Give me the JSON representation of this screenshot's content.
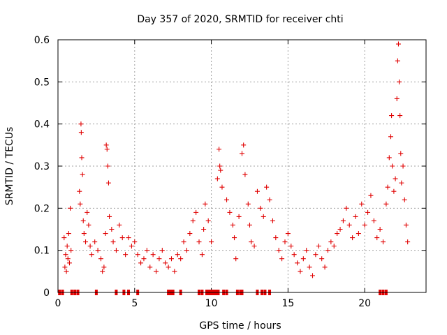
{
  "chart_data": {
    "type": "scatter",
    "title": "Day 357 of 2020, SRMTID for receiver chti",
    "xlabel": "GPS time / hours",
    "ylabel": "SRMTID / TECUs",
    "xlim": [
      0,
      24
    ],
    "ylim": [
      0,
      0.6
    ],
    "xticks": [
      0,
      5,
      10,
      15,
      20
    ],
    "xtick_labels": [
      "0",
      "5",
      "10",
      "15",
      "20"
    ],
    "yticks": [
      0,
      0.1,
      0.2,
      0.3,
      0.4,
      0.5,
      0.6
    ],
    "ytick_labels": [
      "0",
      "0.1",
      "0.2",
      "0.3",
      "0.4",
      "0.5",
      "0.6"
    ],
    "grid": true,
    "marker": "+",
    "color": "#e00000",
    "series": [
      {
        "name": "SRMTID",
        "points": [
          [
            0.4,
            0.13
          ],
          [
            0.45,
            0.06
          ],
          [
            0.5,
            0.09
          ],
          [
            0.55,
            0.05
          ],
          [
            0.6,
            0.11
          ],
          [
            0.65,
            0.08
          ],
          [
            0.7,
            0.14
          ],
          [
            0.75,
            0.07
          ],
          [
            0.8,
            0.2
          ],
          [
            0.85,
            0.1
          ],
          [
            1.4,
            0.24
          ],
          [
            1.45,
            0.21
          ],
          [
            1.5,
            0.4
          ],
          [
            1.52,
            0.38
          ],
          [
            1.55,
            0.32
          ],
          [
            1.6,
            0.28
          ],
          [
            1.65,
            0.17
          ],
          [
            1.7,
            0.14
          ],
          [
            1.8,
            0.12
          ],
          [
            1.9,
            0.19
          ],
          [
            2.0,
            0.16
          ],
          [
            2.1,
            0.11
          ],
          [
            2.2,
            0.09
          ],
          [
            2.4,
            0.12
          ],
          [
            2.6,
            0.1
          ],
          [
            2.8,
            0.08
          ],
          [
            2.9,
            0.05
          ],
          [
            3.0,
            0.06
          ],
          [
            3.1,
            0.14
          ],
          [
            3.15,
            0.35
          ],
          [
            3.2,
            0.34
          ],
          [
            3.25,
            0.3
          ],
          [
            3.3,
            0.26
          ],
          [
            3.35,
            0.18
          ],
          [
            3.5,
            0.15
          ],
          [
            3.6,
            0.12
          ],
          [
            3.8,
            0.1
          ],
          [
            4.0,
            0.16
          ],
          [
            4.2,
            0.13
          ],
          [
            4.4,
            0.09
          ],
          [
            4.6,
            0.13
          ],
          [
            4.8,
            0.11
          ],
          [
            5.0,
            0.12
          ],
          [
            5.2,
            0.09
          ],
          [
            5.4,
            0.07
          ],
          [
            5.6,
            0.08
          ],
          [
            5.8,
            0.1
          ],
          [
            6.0,
            0.06
          ],
          [
            6.2,
            0.09
          ],
          [
            6.4,
            0.05
          ],
          [
            6.6,
            0.08
          ],
          [
            6.8,
            0.1
          ],
          [
            7.0,
            0.07
          ],
          [
            7.2,
            0.06
          ],
          [
            7.4,
            0.08
          ],
          [
            7.6,
            0.05
          ],
          [
            7.8,
            0.09
          ],
          [
            8.0,
            0.08
          ],
          [
            8.2,
            0.12
          ],
          [
            8.4,
            0.1
          ],
          [
            8.6,
            0.14
          ],
          [
            8.8,
            0.17
          ],
          [
            9.0,
            0.19
          ],
          [
            9.2,
            0.12
          ],
          [
            9.4,
            0.09
          ],
          [
            9.5,
            0.15
          ],
          [
            9.6,
            0.21
          ],
          [
            9.8,
            0.17
          ],
          [
            10.0,
            0.12
          ],
          [
            10.4,
            0.27
          ],
          [
            10.5,
            0.34
          ],
          [
            10.55,
            0.3
          ],
          [
            10.6,
            0.29
          ],
          [
            10.7,
            0.25
          ],
          [
            11.0,
            0.22
          ],
          [
            11.2,
            0.19
          ],
          [
            11.4,
            0.16
          ],
          [
            11.5,
            0.13
          ],
          [
            11.6,
            0.08
          ],
          [
            11.8,
            0.18
          ],
          [
            12.0,
            0.33
          ],
          [
            12.1,
            0.35
          ],
          [
            12.2,
            0.28
          ],
          [
            12.4,
            0.21
          ],
          [
            12.5,
            0.16
          ],
          [
            12.6,
            0.12
          ],
          [
            12.8,
            0.11
          ],
          [
            13.0,
            0.24
          ],
          [
            13.2,
            0.2
          ],
          [
            13.4,
            0.18
          ],
          [
            13.6,
            0.25
          ],
          [
            13.8,
            0.22
          ],
          [
            14.0,
            0.17
          ],
          [
            14.2,
            0.13
          ],
          [
            14.4,
            0.1
          ],
          [
            14.6,
            0.08
          ],
          [
            14.8,
            0.12
          ],
          [
            15.0,
            0.14
          ],
          [
            15.2,
            0.11
          ],
          [
            15.4,
            0.09
          ],
          [
            15.6,
            0.07
          ],
          [
            15.8,
            0.05
          ],
          [
            16.0,
            0.08
          ],
          [
            16.2,
            0.1
          ],
          [
            16.4,
            0.06
          ],
          [
            16.6,
            0.04
          ],
          [
            16.8,
            0.09
          ],
          [
            17.0,
            0.11
          ],
          [
            17.2,
            0.08
          ],
          [
            17.4,
            0.06
          ],
          [
            17.6,
            0.1
          ],
          [
            17.8,
            0.12
          ],
          [
            18.0,
            0.11
          ],
          [
            18.2,
            0.14
          ],
          [
            18.4,
            0.15
          ],
          [
            18.6,
            0.17
          ],
          [
            18.8,
            0.2
          ],
          [
            19.0,
            0.16
          ],
          [
            19.2,
            0.13
          ],
          [
            19.4,
            0.18
          ],
          [
            19.6,
            0.14
          ],
          [
            19.8,
            0.21
          ],
          [
            20.0,
            0.16
          ],
          [
            20.2,
            0.19
          ],
          [
            20.4,
            0.23
          ],
          [
            20.6,
            0.17
          ],
          [
            20.8,
            0.13
          ],
          [
            21.0,
            0.15
          ],
          [
            21.2,
            0.12
          ],
          [
            21.4,
            0.21
          ],
          [
            21.5,
            0.25
          ],
          [
            21.6,
            0.32
          ],
          [
            21.7,
            0.37
          ],
          [
            21.75,
            0.42
          ],
          [
            21.8,
            0.3
          ],
          [
            21.9,
            0.24
          ],
          [
            22.0,
            0.27
          ],
          [
            22.1,
            0.46
          ],
          [
            22.15,
            0.55
          ],
          [
            22.2,
            0.59
          ],
          [
            22.25,
            0.5
          ],
          [
            22.3,
            0.42
          ],
          [
            22.35,
            0.33
          ],
          [
            22.4,
            0.26
          ],
          [
            22.5,
            0.3
          ],
          [
            22.6,
            0.22
          ],
          [
            22.7,
            0.16
          ],
          [
            22.8,
            0.12
          ],
          [
            0.1,
            0
          ],
          [
            0.3,
            0
          ],
          [
            0.9,
            0
          ],
          [
            1.1,
            0
          ],
          [
            1.3,
            0
          ],
          [
            2.5,
            0
          ],
          [
            3.8,
            0
          ],
          [
            4.3,
            0
          ],
          [
            4.6,
            0
          ],
          [
            5.2,
            0
          ],
          [
            7.2,
            0
          ],
          [
            7.35,
            0
          ],
          [
            7.5,
            0
          ],
          [
            8.0,
            0
          ],
          [
            9.2,
            0
          ],
          [
            9.4,
            0
          ],
          [
            9.7,
            0
          ],
          [
            9.85,
            0
          ],
          [
            10.0,
            0
          ],
          [
            10.15,
            0
          ],
          [
            10.3,
            0
          ],
          [
            10.45,
            0
          ],
          [
            10.8,
            0
          ],
          [
            11.0,
            0
          ],
          [
            11.7,
            0
          ],
          [
            11.9,
            0
          ],
          [
            12.0,
            0
          ],
          [
            13.0,
            0
          ],
          [
            13.3,
            0
          ],
          [
            13.5,
            0
          ],
          [
            13.8,
            0
          ],
          [
            21.0,
            0
          ],
          [
            21.2,
            0
          ],
          [
            21.4,
            0
          ]
        ]
      }
    ]
  }
}
